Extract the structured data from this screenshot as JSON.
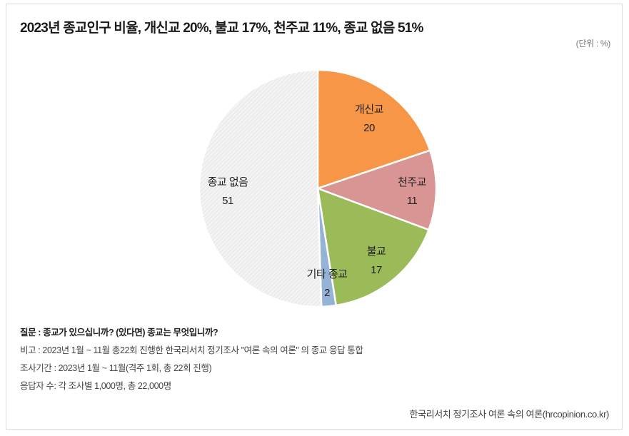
{
  "title": "2023년 종교인구 비율, 개신교 20%, 불교 17%, 천주교 11%, 종교 없음 51%",
  "unit": "(단위 : %)",
  "notes": {
    "question": "질문 : 종교가 있으십니까? (있다면) 종교는 무엇입니까?",
    "remark": "비고 : 2023년 1월 ~ 11월 총22회 진행한 한국리서치 정기조사 \"여론 속의 여론\" 의 종교 응답 통합",
    "period": "조사기간 : 2023년 1월 ~ 11월(격주 1회, 총 22회 진행)",
    "respondents": "응답자 수: 각 조사별 1,000명, 총 22,000명"
  },
  "source": "한국리서치 정기조사 여론 속의 여론(hrcopinion.co.kr)",
  "chart_data": {
    "type": "pie",
    "title": "2023년 종교인구 비율, 개신교 20%, 불교 17%, 천주교 11%, 종교 없음 51%",
    "unit": "%",
    "categories": [
      "개신교",
      "천주교",
      "불교",
      "기타 종교",
      "종교 없음"
    ],
    "values": [
      20,
      11,
      17,
      2,
      51
    ],
    "colors": [
      "#F79646",
      "#D99594",
      "#9BBB59",
      "#95B3D7",
      "#EFEFEF"
    ],
    "start_angle_deg": 0,
    "direction": "clockwise",
    "labels": [
      {
        "name": "개신교",
        "value": "20"
      },
      {
        "name": "천주교",
        "value": "11"
      },
      {
        "name": "불교",
        "value": "17"
      },
      {
        "name": "기타 종교",
        "value": "2"
      },
      {
        "name": "종교 없음",
        "value": "51"
      }
    ],
    "legend": "none",
    "grid": false
  }
}
